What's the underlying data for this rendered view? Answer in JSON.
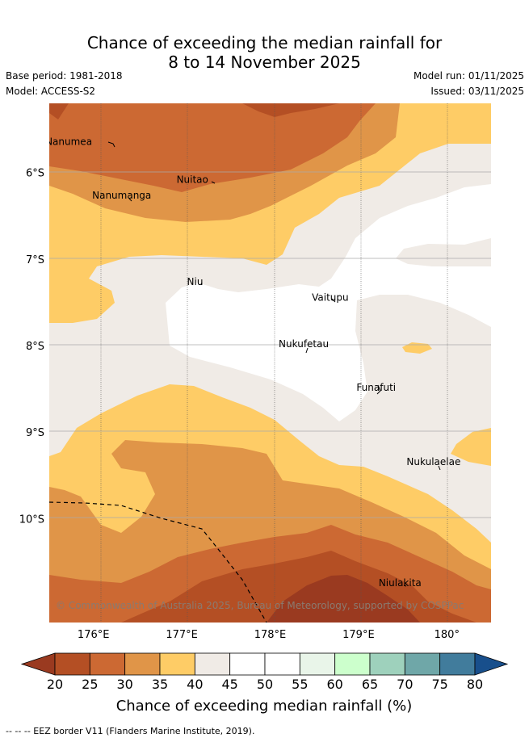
{
  "title": {
    "line1": "Chance of exceeding the median rainfall for",
    "line2": "8 to 14 November 2025"
  },
  "meta": {
    "base_period": "Base period: 1981-2018",
    "model": "Model: ACCESS-S2",
    "model_run": "Model run: 01/11/2025",
    "issued": "Issued: 03/11/2025"
  },
  "map": {
    "lon_range": [
      175.5,
      180.5
    ],
    "lat_range": [
      -11.2,
      -5.2
    ],
    "x_ticks": [
      {
        "value": 176,
        "label": "176°E"
      },
      {
        "value": 177,
        "label": "177°E"
      },
      {
        "value": 178,
        "label": "178°E"
      },
      {
        "value": 179,
        "label": "179°E"
      },
      {
        "value": 180,
        "label": "180°"
      }
    ],
    "y_ticks": [
      {
        "value": -6,
        "label": "6°S"
      },
      {
        "value": -7,
        "label": "7°S"
      },
      {
        "value": -8,
        "label": "8°S"
      },
      {
        "value": -9,
        "label": "9°S"
      },
      {
        "value": -10,
        "label": "10°S"
      }
    ],
    "places": [
      {
        "name": "Nanumea",
        "lon": 175.72,
        "lat": -5.68
      },
      {
        "name": "Nuitao",
        "lon": 177.12,
        "lat": -6.12
      },
      {
        "name": "Nanumanga",
        "lon": 176.32,
        "lat": -6.3
      },
      {
        "name": "Niu",
        "lon": 177.15,
        "lat": -7.3
      },
      {
        "name": "Vaitupu",
        "lon": 178.68,
        "lat": -7.48
      },
      {
        "name": "Nukufetau",
        "lon": 178.38,
        "lat": -8.02
      },
      {
        "name": "Funafuti",
        "lon": 179.2,
        "lat": -8.52
      },
      {
        "name": "Nukulaelae",
        "lon": 179.85,
        "lat": -9.38
      },
      {
        "name": "Niulakita",
        "lon": 179.47,
        "lat": -10.78
      }
    ],
    "copyright": "© Commonwealth of Australia 2025, Bureau of Meteorology, supported by COSPPac"
  },
  "colorbar": {
    "labels": [
      "20",
      "25",
      "30",
      "35",
      "40",
      "45",
      "50",
      "55",
      "60",
      "65",
      "70",
      "75",
      "80"
    ],
    "colors": [
      "#b44f24",
      "#cc6933",
      "#e09548",
      "#fecc66",
      "#f0ebe6",
      "#ffffff",
      "#ffffff",
      "#e9f5e9",
      "#ccffcc",
      "#9ed1bc",
      "#6fa7a8",
      "#417c9c"
    ],
    "under_color": "#9a3a20",
    "over_color": "#184f8c",
    "title": "Chance of exceeding median rainfall (%)"
  },
  "footer": "--  --  -- EEZ border V11 (Flanders Marine Institute, 2019)."
}
